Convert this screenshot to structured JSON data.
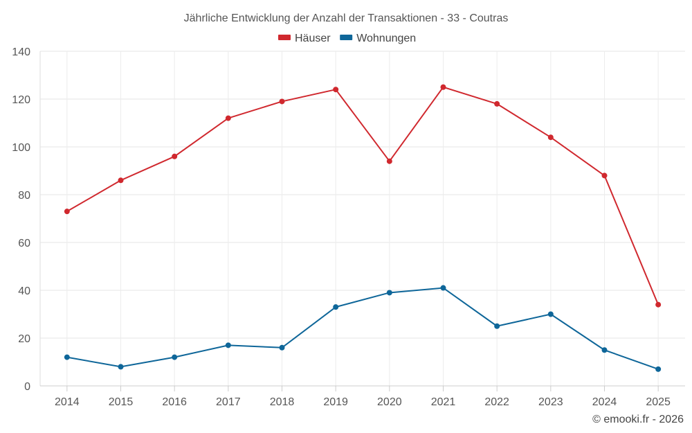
{
  "chart_data": {
    "type": "line",
    "title": "Jährliche Entwicklung der Anzahl der Transaktionen - 33 - Coutras",
    "categories": [
      "2014",
      "2015",
      "2016",
      "2017",
      "2018",
      "2019",
      "2020",
      "2021",
      "2022",
      "2023",
      "2024",
      "2025"
    ],
    "series": [
      {
        "name": "Häuser",
        "color": "#d0282e",
        "values": [
          73,
          86,
          96,
          112,
          119,
          124,
          94,
          125,
          118,
          104,
          88,
          34
        ]
      },
      {
        "name": "Wohnungen",
        "color": "#0e6699",
        "values": [
          12,
          8,
          12,
          17,
          16,
          33,
          39,
          41,
          25,
          30,
          15,
          7
        ]
      }
    ],
    "ylim": [
      0,
      140
    ],
    "yticks": [
      0,
      20,
      40,
      60,
      80,
      100,
      120,
      140
    ],
    "grid": true,
    "legend": "top-center",
    "xlabel": "",
    "ylabel": ""
  },
  "credit": "© emooki.fr - 2026"
}
